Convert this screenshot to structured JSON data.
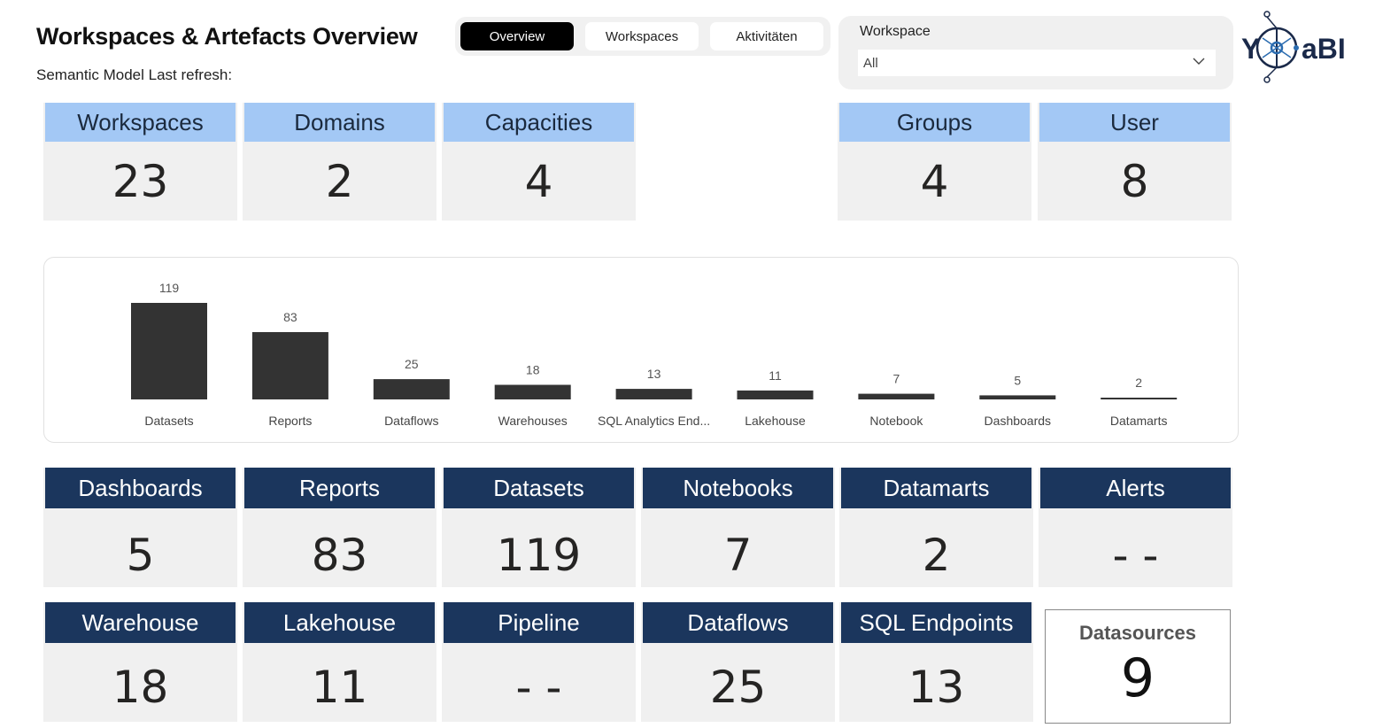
{
  "header": {
    "title": "Workspaces & Artefacts Overview",
    "subtitle": "Semantic Model Last refresh:"
  },
  "tabs": [
    {
      "label": "Overview",
      "active": true
    },
    {
      "label": "Workspaces",
      "active": false
    },
    {
      "label": "Aktivitäten",
      "active": false
    }
  ],
  "slicer": {
    "title": "Workspace",
    "value": "All",
    "icon": "chevron-down-icon"
  },
  "logo": {
    "text": "Y   aBI",
    "icon": "network-globe-icon"
  },
  "top_cards": [
    {
      "label": "Workspaces",
      "value": "23"
    },
    {
      "label": "Domains",
      "value": "2"
    },
    {
      "label": "Capacities",
      "value": "4"
    },
    {
      "label": "Groups",
      "value": "4"
    },
    {
      "label": "User",
      "value": "8"
    }
  ],
  "artefact_cards": [
    {
      "label": "Dashboards",
      "value": "5"
    },
    {
      "label": "Reports",
      "value": "83"
    },
    {
      "label": "Datasets",
      "value": "119"
    },
    {
      "label": "Notebooks",
      "value": "7"
    },
    {
      "label": "Datamarts",
      "value": "2"
    },
    {
      "label": "Alerts",
      "value": "- -"
    },
    {
      "label": "Warehouse",
      "value": "18"
    },
    {
      "label": "Lakehouse",
      "value": "11"
    },
    {
      "label": "Pipeline",
      "value": "- -"
    },
    {
      "label": "Dataflows",
      "value": "25"
    },
    {
      "label": "SQL Endpoints",
      "value": "13"
    }
  ],
  "datasources": {
    "label": "Datasources",
    "value": "9"
  },
  "colors": {
    "light_header": "#a3c8f5",
    "dark_header": "#1b365d",
    "card_bg": "#f0f0f0",
    "bar": "#333333",
    "tab_active": "#000000"
  },
  "chart_data": {
    "type": "bar",
    "categories": [
      "Datasets",
      "Reports",
      "Dataflows",
      "Warehouses",
      "SQL Analytics End...",
      "Lakehouse",
      "Notebook",
      "Dashboards",
      "Datamarts"
    ],
    "values": [
      119,
      83,
      25,
      18,
      13,
      11,
      7,
      5,
      2
    ],
    "title": "",
    "xlabel": "",
    "ylabel": "",
    "ylim": [
      0,
      119
    ],
    "grid": false,
    "data_labels": true
  }
}
